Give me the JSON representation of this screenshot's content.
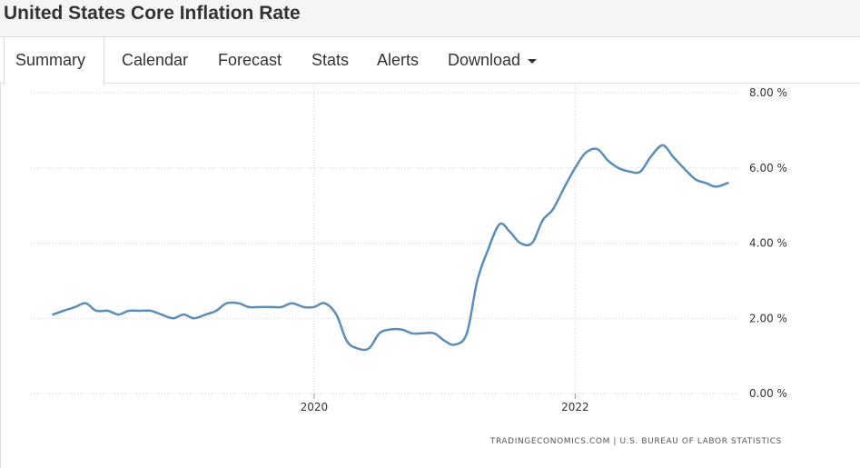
{
  "page": {
    "title": "United States Core Inflation Rate"
  },
  "tabs": [
    {
      "label": "Summary",
      "active": true
    },
    {
      "label": "Calendar",
      "active": false
    },
    {
      "label": "Forecast",
      "active": false
    },
    {
      "label": "Stats",
      "active": false
    },
    {
      "label": "Alerts",
      "active": false
    },
    {
      "label": "Download",
      "active": false,
      "dropdown": true
    }
  ],
  "colors": {
    "line": "#5b8db8",
    "grid": "#d0d0d0"
  },
  "chart_data": {
    "type": "line",
    "title": "United States Core Inflation Rate",
    "xlabel": "",
    "ylabel": "",
    "ylim": [
      0,
      8
    ],
    "y_ticks": [
      {
        "value": 0,
        "label": "0.00 %"
      },
      {
        "value": 2,
        "label": "2.00 %"
      },
      {
        "value": 4,
        "label": "4.00 %"
      },
      {
        "value": 6,
        "label": "6.00 %"
      },
      {
        "value": 8,
        "label": "8.00 %"
      }
    ],
    "x_ticks": [
      {
        "value": 2020.0,
        "label": "2020"
      },
      {
        "value": 2022.0,
        "label": "2022"
      }
    ],
    "xlim": [
      2017.83,
      2023.25
    ],
    "grid": true,
    "source": "TRADINGECONOMICS.COM | U.S. BUREAU OF LABOR STATISTICS",
    "series": [
      {
        "name": "Core Inflation Rate",
        "x": [
          2018.0,
          2018.08,
          2018.17,
          2018.25,
          2018.33,
          2018.42,
          2018.5,
          2018.58,
          2018.67,
          2018.75,
          2018.83,
          2018.92,
          2019.0,
          2019.08,
          2019.17,
          2019.25,
          2019.33,
          2019.42,
          2019.5,
          2019.58,
          2019.67,
          2019.75,
          2019.83,
          2019.92,
          2020.0,
          2020.08,
          2020.17,
          2020.25,
          2020.33,
          2020.42,
          2020.5,
          2020.58,
          2020.67,
          2020.75,
          2020.83,
          2020.92,
          2021.0,
          2021.08,
          2021.17,
          2021.25,
          2021.33,
          2021.42,
          2021.5,
          2021.58,
          2021.67,
          2021.75,
          2021.83,
          2021.92,
          2022.0,
          2022.08,
          2022.17,
          2022.25,
          2022.33,
          2022.42,
          2022.5,
          2022.58,
          2022.67,
          2022.75,
          2022.83,
          2022.92,
          2023.0,
          2023.08,
          2023.17
        ],
        "values": [
          2.1,
          2.2,
          2.3,
          2.4,
          2.2,
          2.2,
          2.1,
          2.2,
          2.2,
          2.2,
          2.1,
          2.0,
          2.1,
          2.0,
          2.1,
          2.2,
          2.4,
          2.4,
          2.3,
          2.3,
          2.3,
          2.3,
          2.4,
          2.3,
          2.3,
          2.4,
          2.1,
          1.4,
          1.2,
          1.2,
          1.6,
          1.7,
          1.7,
          1.6,
          1.6,
          1.6,
          1.4,
          1.3,
          1.6,
          3.0,
          3.8,
          4.5,
          4.3,
          4.0,
          4.0,
          4.6,
          4.9,
          5.5,
          6.0,
          6.4,
          6.5,
          6.2,
          6.0,
          5.9,
          5.9,
          6.3,
          6.6,
          6.3,
          6.0,
          5.7,
          5.6,
          5.5,
          5.6
        ]
      }
    ]
  }
}
